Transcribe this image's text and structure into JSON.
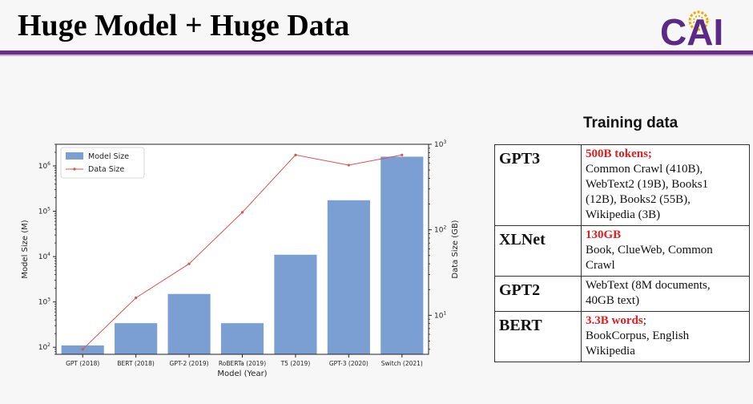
{
  "slide": {
    "title": "Huge Model + Huge Data"
  },
  "logo": {
    "text": "CAI"
  },
  "chart_data": {
    "type": "bar+line",
    "categories": [
      "GPT (2018)",
      "BERT (2018)",
      "GPT-2 (2019)",
      "RoBERTa (2019)",
      "T5 (2019)",
      "GPT-3 (2020)",
      "Switch (2021)"
    ],
    "series": [
      {
        "name": "Model Size",
        "type": "bar",
        "axis": "left",
        "values": [
          110,
          340,
          1500,
          340,
          11000,
          175000,
          1600000
        ],
        "color": "#7b9fd2"
      },
      {
        "name": "Data Size",
        "type": "line",
        "axis": "right",
        "values": [
          4,
          16,
          40,
          160,
          750,
          570,
          750
        ],
        "color": "#d9534f"
      }
    ],
    "xlabel": "Model (Year)",
    "ylabel": "Model Size (M)",
    "y2label": "Data Size (GB)",
    "yscale": "log",
    "ylim": [
      70,
      3000000
    ],
    "y2scale": "log",
    "y2lim": [
      3.5,
      1000
    ],
    "yticks": [
      {
        "v": 100,
        "base": "10",
        "exp": "2"
      },
      {
        "v": 1000,
        "base": "10",
        "exp": "3"
      },
      {
        "v": 10000,
        "base": "10",
        "exp": "4"
      },
      {
        "v": 100000,
        "base": "10",
        "exp": "5"
      },
      {
        "v": 1000000,
        "base": "10",
        "exp": "6"
      }
    ],
    "y2ticks": [
      {
        "v": 10,
        "base": "10",
        "exp": "1"
      },
      {
        "v": 100,
        "base": "10",
        "exp": "2"
      },
      {
        "v": 1000,
        "base": "10",
        "exp": "3"
      }
    ],
    "legend": "top-left"
  },
  "training": {
    "heading": "Training data",
    "rows": [
      {
        "model": "GPT3",
        "highlight": "500B tokens;",
        "lines": [
          "Common Crawl (410B),",
          "WebText2 (19B), Books1",
          "(12B), Books2 (55B),",
          "Wikipedia (3B)"
        ]
      },
      {
        "model": "XLNet",
        "highlight": "130GB",
        "lines": [
          "Book, ClueWeb, Common",
          "Crawl"
        ]
      },
      {
        "model": "GPT2",
        "highlight": "",
        "lines": [
          "WebText (8M documents,",
          "40GB text)"
        ]
      },
      {
        "model": "BERT",
        "highlight": "3.3B words",
        "tail": ";",
        "lines": [
          "BookCorpus, English",
          "Wikipedia"
        ]
      }
    ]
  }
}
